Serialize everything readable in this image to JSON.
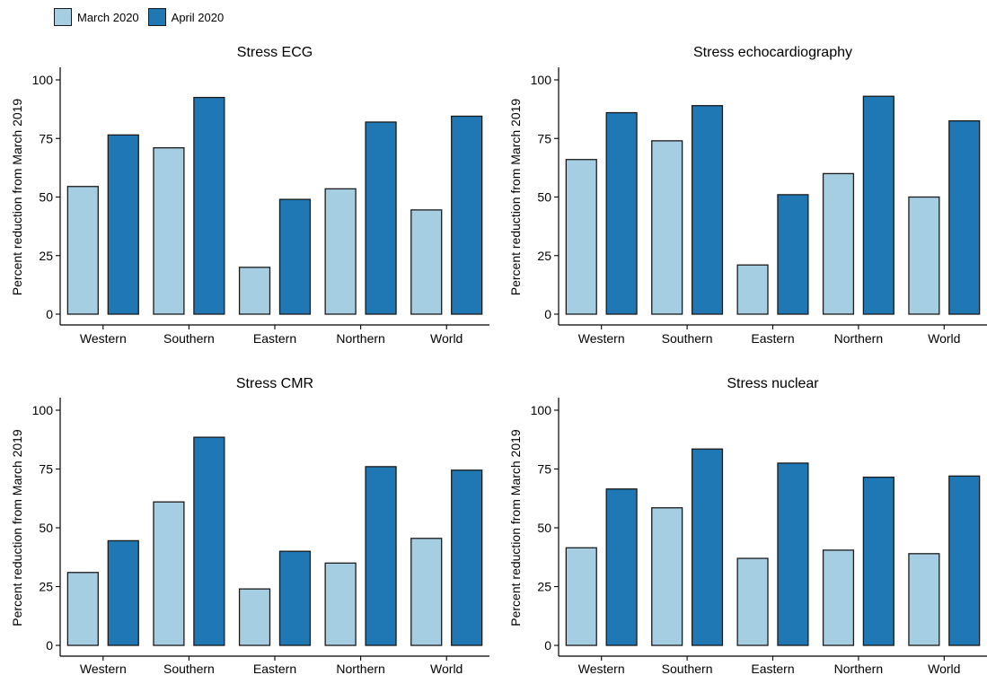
{
  "legend": {
    "items": [
      {
        "label": "March 2020",
        "color": "#a6cee3"
      },
      {
        "label": "April 2020",
        "color": "#1f78b4"
      }
    ]
  },
  "chart_data": [
    {
      "type": "bar",
      "title": "Stress ECG",
      "ylabel": "Percent reduction from March 2019",
      "xlabel": "",
      "categories": [
        "Western",
        "Southern",
        "Eastern",
        "Northern",
        "World"
      ],
      "ylim": [
        0,
        100
      ],
      "yticks": [
        0,
        25,
        50,
        75,
        100
      ],
      "series": [
        {
          "name": "March 2020",
          "values": [
            54.5,
            71,
            20,
            53.5,
            44.5
          ]
        },
        {
          "name": "April 2020",
          "values": [
            76.5,
            92.5,
            49,
            82,
            84.5
          ]
        }
      ]
    },
    {
      "type": "bar",
      "title": "Stress echocardiography",
      "ylabel": "Percent reduction from March 2019",
      "xlabel": "",
      "categories": [
        "Western",
        "Southern",
        "Eastern",
        "Northern",
        "World"
      ],
      "ylim": [
        0,
        100
      ],
      "yticks": [
        0,
        25,
        50,
        75,
        100
      ],
      "series": [
        {
          "name": "March 2020",
          "values": [
            66,
            74,
            21,
            60,
            50
          ]
        },
        {
          "name": "April 2020",
          "values": [
            86,
            89,
            51,
            93,
            82.5
          ]
        }
      ]
    },
    {
      "type": "bar",
      "title": "Stress CMR",
      "ylabel": "Percent reduction from March 2019",
      "xlabel": "",
      "categories": [
        "Western",
        "Southern",
        "Eastern",
        "Northern",
        "World"
      ],
      "ylim": [
        0,
        100
      ],
      "yticks": [
        0,
        25,
        50,
        75,
        100
      ],
      "series": [
        {
          "name": "March 2020",
          "values": [
            31,
            61,
            24,
            35,
            45.5
          ]
        },
        {
          "name": "April 2020",
          "values": [
            44.5,
            88.5,
            40,
            76,
            74.5
          ]
        }
      ]
    },
    {
      "type": "bar",
      "title": "Stress nuclear",
      "ylabel": "Percent reduction from March 2019",
      "xlabel": "",
      "categories": [
        "Western",
        "Southern",
        "Eastern",
        "Northern",
        "World"
      ],
      "ylim": [
        0,
        100
      ],
      "yticks": [
        0,
        25,
        50,
        75,
        100
      ],
      "series": [
        {
          "name": "March 2020",
          "values": [
            41.5,
            58.5,
            37,
            40.5,
            39
          ]
        },
        {
          "name": "April 2020",
          "values": [
            66.5,
            83.5,
            77.5,
            71.5,
            72
          ]
        }
      ]
    }
  ]
}
